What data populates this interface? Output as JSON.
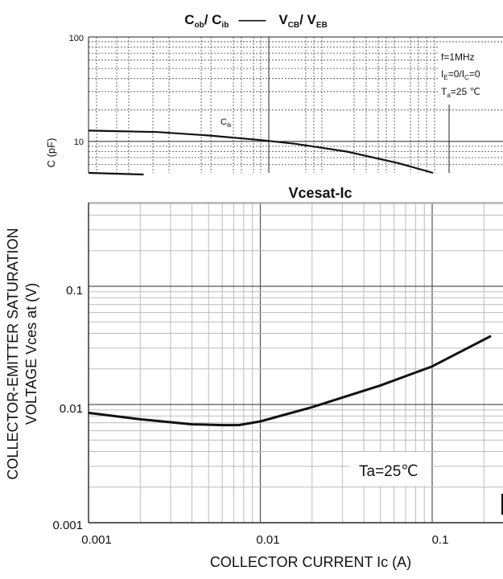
{
  "chart_data": [
    {
      "type": "line",
      "title": {
        "main": "C",
        "main_sub": "ob",
        "mid": "/ C",
        "mid_sub": "ib",
        "dash": "——",
        "right": "V",
        "right_sub": "CB",
        "right2": "/ V",
        "right2_sub": "EB"
      },
      "ylabel": "C   (pF)",
      "y_scale": "log",
      "ylim": [
        5,
        100
      ],
      "y_ticks": [
        "100",
        "10"
      ],
      "annotations": {
        "freq": "f=1MHz",
        "cond_I": "I",
        "cond_Isub1": "E",
        "cond_mid": "=0/I",
        "cond_Isub2": "C",
        "cond_end": "=0",
        "temp_T": "T",
        "temp_sub": "a",
        "temp_rest": "=25 ℃"
      },
      "series": [
        {
          "name": "C",
          "name_sub": "ib",
          "points": [
            [
              0.0,
              12.7
            ],
            [
              0.2,
              12.3
            ],
            [
              0.35,
              11.4
            ],
            [
              0.5,
              10.3
            ],
            [
              0.6,
              9.5
            ],
            [
              0.75,
              8.0
            ],
            [
              0.9,
              6.2
            ],
            [
              1.0,
              5.0
            ]
          ]
        },
        {
          "name": "",
          "points": [
            [
              0.0,
              5.0
            ],
            [
              0.16,
              4.7
            ]
          ]
        }
      ]
    },
    {
      "type": "line",
      "title": "Vcesat-Ic",
      "xlabel": "COLLECTOR CURRENT  Ic (A)",
      "ylabel_line1": "COLLECTOR-EMITTER SATURATION",
      "ylabel_line2": "VOLTAGE   Vces at (V)",
      "x_scale": "log",
      "y_scale": "log",
      "xlim": [
        0.001,
        0.22
      ],
      "ylim": [
        0.001,
        0.6
      ],
      "x_ticks": [
        "0.001",
        "0.01",
        "0.1"
      ],
      "y_ticks": [
        "0.1",
        "0.01",
        "0.001"
      ],
      "grid": true,
      "annotation": "Ta=25℃",
      "series": [
        {
          "name": "",
          "x": [
            0.001,
            0.002,
            0.004,
            0.006,
            0.0075,
            0.01,
            0.02,
            0.05,
            0.1,
            0.22
          ],
          "y": [
            0.0085,
            0.0075,
            0.0068,
            0.0067,
            0.0067,
            0.0072,
            0.0095,
            0.0145,
            0.021,
            0.038
          ]
        }
      ]
    }
  ]
}
